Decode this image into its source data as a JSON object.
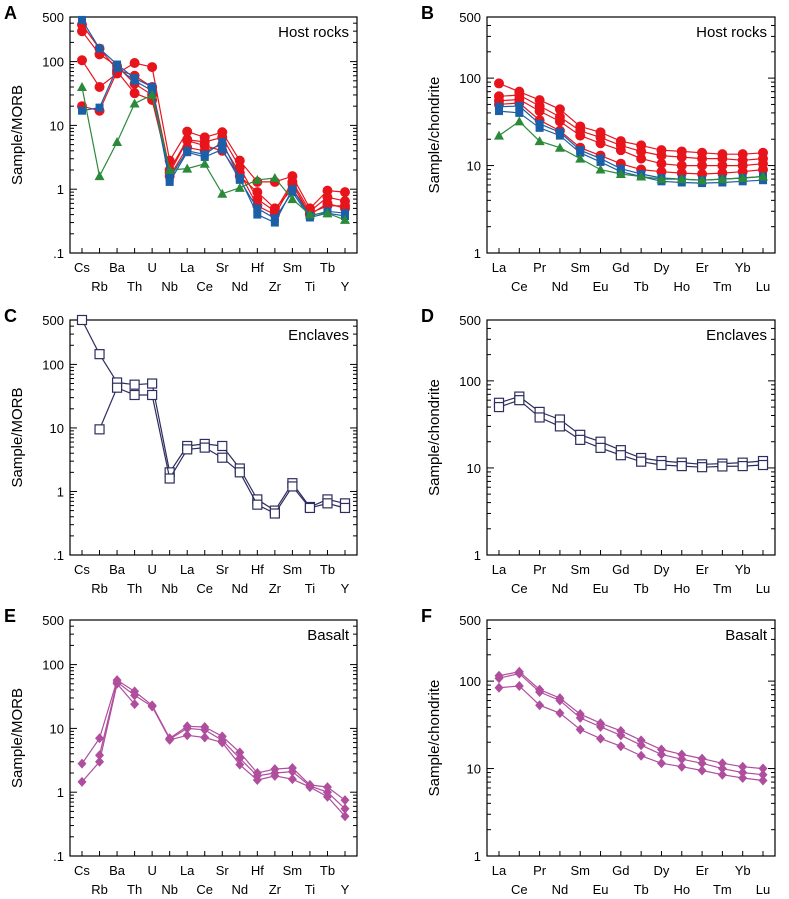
{
  "colors": {
    "red": "#e8141c",
    "blue": "#1b5fa8",
    "green": "#2a8a3a",
    "navy": "#2e2e5e",
    "purple": "#b04e9e"
  },
  "chart_data": [
    {
      "id": "A",
      "panel_label": "A",
      "type": "line",
      "title": "Host rocks",
      "ylabel": "Sample/MORB",
      "yscale": "log",
      "ylim": [
        0.1,
        500
      ],
      "yticks": [
        ".1",
        "1",
        "10",
        "100",
        "500"
      ],
      "categories": [
        "Cs",
        "Rb",
        "Ba",
        "Th",
        "U",
        "Nb",
        "La",
        "Ce",
        "Sr",
        "Nd",
        "Hf",
        "Zr",
        "Sm",
        "Ti",
        "Tb",
        "Y"
      ],
      "series": [
        {
          "name": "host-red-1",
          "color": "red",
          "marker": "circle",
          "values": [
            380,
            160,
            75,
            60,
            40,
            2.0,
            6.0,
            5.5,
            6.5,
            2.2,
            0.7,
            0.45,
            1.3,
            0.45,
            0.75,
            0.65
          ]
        },
        {
          "name": "host-red-2",
          "color": "red",
          "marker": "circle",
          "values": [
            300,
            130,
            85,
            45,
            30,
            1.6,
            4.5,
            4.0,
            5.0,
            1.8,
            0.55,
            0.4,
            1.2,
            0.4,
            0.6,
            0.5
          ]
        },
        {
          "name": "host-red-3",
          "color": "red",
          "marker": "circle",
          "values": [
            105,
            40,
            65,
            95,
            82,
            2.8,
            8.0,
            6.5,
            7.8,
            2.8,
            1.3,
            1.3,
            1.6,
            0.5,
            0.95,
            0.9
          ]
        },
        {
          "name": "host-red-4",
          "color": "red",
          "marker": "circle",
          "values": [
            20,
            17,
            70,
            32,
            25,
            1.8,
            5.8,
            4.8,
            4.0,
            1.6,
            0.9,
            0.5,
            1.0,
            0.42,
            0.55,
            0.55
          ]
        },
        {
          "name": "host-blue-1",
          "color": "blue",
          "marker": "square",
          "values": [
            450,
            160,
            90,
            55,
            40,
            1.5,
            4.0,
            3.5,
            5.5,
            1.5,
            0.4,
            0.3,
            1.0,
            0.38,
            0.45,
            0.42
          ]
        },
        {
          "name": "host-blue-2",
          "color": "blue",
          "marker": "square",
          "values": [
            17,
            19,
            80,
            50,
            35,
            1.3,
            3.8,
            3.2,
            4.2,
            1.4,
            0.5,
            0.35,
            0.9,
            0.36,
            0.42,
            0.38
          ]
        },
        {
          "name": "host-green",
          "color": "green",
          "marker": "triangle",
          "values": [
            40,
            1.6,
            5.5,
            22,
            30,
            2.0,
            2.1,
            2.5,
            0.85,
            1.05,
            1.4,
            1.5,
            0.7,
            0.4,
            0.42,
            0.33
          ]
        }
      ]
    },
    {
      "id": "B",
      "panel_label": "B",
      "type": "line",
      "title": "Host rocks",
      "ylabel": "Sample/chondrite",
      "yscale": "log",
      "ylim": [
        1,
        500
      ],
      "yticks": [
        "1",
        "10",
        "100",
        "500"
      ],
      "categories": [
        "La",
        "Ce",
        "Pr",
        "Nd",
        "Sm",
        "Eu",
        "Gd",
        "Tb",
        "Dy",
        "Ho",
        "Er",
        "Tm",
        "Yb",
        "Lu"
      ],
      "series": [
        {
          "name": "host-red-1",
          "color": "red",
          "marker": "circle",
          "values": [
            87,
            70,
            56,
            44,
            28,
            24,
            19,
            17,
            15,
            14.5,
            14,
            13.5,
            13.5,
            14
          ]
        },
        {
          "name": "host-red-2",
          "color": "red",
          "marker": "circle",
          "values": [
            62,
            64,
            48,
            36,
            25,
            21,
            17,
            14.5,
            13,
            12.5,
            12,
            12,
            11.5,
            12
          ]
        },
        {
          "name": "host-red-3",
          "color": "red",
          "marker": "circle",
          "values": [
            55,
            57,
            42,
            32,
            22,
            18,
            15,
            12,
            10.5,
            10,
            10,
            10,
            10,
            10.5
          ]
        },
        {
          "name": "host-red-4",
          "color": "red",
          "marker": "circle",
          "values": [
            50,
            52,
            33,
            25,
            16,
            13,
            10.5,
            9,
            8.5,
            8.2,
            8,
            8.2,
            8.5,
            9
          ]
        },
        {
          "name": "host-blue-1",
          "color": "blue",
          "marker": "square",
          "values": [
            47,
            48,
            30,
            24,
            15,
            12,
            9.2,
            8.0,
            7.2,
            7.0,
            6.8,
            7.0,
            7.2,
            7.5
          ]
        },
        {
          "name": "host-blue-2",
          "color": "blue",
          "marker": "square",
          "values": [
            42,
            40,
            27,
            22,
            14,
            11,
            8.5,
            7.5,
            6.6,
            6.4,
            6.3,
            6.4,
            6.6,
            6.8
          ]
        },
        {
          "name": "host-green",
          "color": "green",
          "marker": "triangle",
          "values": [
            22,
            32,
            19,
            16,
            12,
            9,
            8,
            7.5,
            7,
            7,
            6.8,
            7,
            7.2,
            7.5
          ]
        }
      ]
    },
    {
      "id": "C",
      "panel_label": "C",
      "type": "line",
      "title": "Enclaves",
      "ylabel": "Sample/MORB",
      "yscale": "log",
      "ylim": [
        0.1,
        500
      ],
      "yticks": [
        ".1",
        "1",
        "10",
        "100",
        "500"
      ],
      "categories": [
        "Cs",
        "Rb",
        "Ba",
        "Th",
        "U",
        "Nb",
        "La",
        "Ce",
        "Sr",
        "Nd",
        "Hf",
        "Zr",
        "Sm",
        "Ti",
        "Tb",
        "Y"
      ],
      "series": [
        {
          "name": "enclave-1",
          "color": "navy",
          "marker": "open-square",
          "values": [
            500,
            145,
            52,
            48,
            50,
            2.0,
            5.2,
            5.6,
            5.2,
            2.3,
            0.75,
            0.5,
            1.35,
            0.57,
            0.75,
            0.65
          ]
        },
        {
          "name": "enclave-2",
          "color": "navy",
          "marker": "open-square",
          "values": [
            null,
            9.5,
            43,
            33,
            33,
            1.6,
            4.6,
            4.9,
            3.4,
            2.0,
            0.62,
            0.45,
            1.2,
            0.55,
            0.65,
            0.55
          ]
        }
      ]
    },
    {
      "id": "D",
      "panel_label": "D",
      "type": "line",
      "title": "Enclaves",
      "ylabel": "Sample/chondrite",
      "yscale": "log",
      "ylim": [
        1,
        500
      ],
      "yticks": [
        "1",
        "10",
        "100",
        "500"
      ],
      "categories": [
        "La",
        "Ce",
        "Pr",
        "Nd",
        "Sm",
        "Eu",
        "Gd",
        "Tb",
        "Dy",
        "Ho",
        "Er",
        "Tm",
        "Yb",
        "Lu"
      ],
      "series": [
        {
          "name": "enclave-1",
          "color": "navy",
          "marker": "open-square",
          "values": [
            56,
            66,
            44,
            36,
            24,
            20,
            16,
            13,
            12,
            11.5,
            11,
            11.2,
            11.5,
            12
          ]
        },
        {
          "name": "enclave-2",
          "color": "navy",
          "marker": "open-square",
          "values": [
            50,
            60,
            38,
            30,
            21,
            17,
            14,
            11.8,
            10.8,
            10.5,
            10.2,
            10.4,
            10.5,
            10.8
          ]
        }
      ]
    },
    {
      "id": "E",
      "panel_label": "E",
      "type": "line",
      "title": "Basalt",
      "ylabel": "Sample/MORB",
      "yscale": "log",
      "ylim": [
        0.1,
        500
      ],
      "yticks": [
        ".1",
        "1",
        "10",
        "100",
        "500"
      ],
      "categories": [
        "Cs",
        "Rb",
        "Ba",
        "Th",
        "U",
        "Nb",
        "La",
        "Ce",
        "Sr",
        "Nd",
        "Hf",
        "Zr",
        "Sm",
        "Ti",
        "Tb",
        "Y"
      ],
      "series": [
        {
          "name": "basalt-1",
          "color": "purple",
          "marker": "diamond",
          "values": [
            2.8,
            7.0,
            57,
            38,
            23,
            7.0,
            10.8,
            10.5,
            7.5,
            4.2,
            2.0,
            2.3,
            2.4,
            1.3,
            1.2,
            0.75
          ]
        },
        {
          "name": "basalt-2",
          "color": "purple",
          "marker": "diamond",
          "values": [
            null,
            3.8,
            53,
            33,
            22,
            6.8,
            10.0,
            9.5,
            6.5,
            3.4,
            1.8,
            2.0,
            2.1,
            1.25,
            1.0,
            0.55
          ]
        },
        {
          "name": "basalt-3",
          "color": "purple",
          "marker": "diamond",
          "values": [
            1.45,
            3.0,
            50,
            24,
            null,
            6.6,
            7.8,
            7.2,
            6.0,
            2.7,
            1.55,
            1.8,
            1.6,
            1.2,
            0.85,
            0.42
          ]
        }
      ]
    },
    {
      "id": "F",
      "panel_label": "F",
      "type": "line",
      "title": "Basalt",
      "ylabel": "Sample/chondrite",
      "yscale": "log",
      "ylim": [
        1,
        500
      ],
      "yticks": [
        "1",
        "10",
        "100",
        "500"
      ],
      "categories": [
        "La",
        "Ce",
        "Pr",
        "Nd",
        "Sm",
        "Eu",
        "Gd",
        "Tb",
        "Dy",
        "Ho",
        "Er",
        "Tm",
        "Yb",
        "Lu"
      ],
      "series": [
        {
          "name": "basalt-1",
          "color": "purple",
          "marker": "diamond",
          "values": [
            115,
            128,
            80,
            64,
            42,
            33,
            27,
            21,
            16.5,
            14.5,
            13,
            11.5,
            10.5,
            10
          ]
        },
        {
          "name": "basalt-2",
          "color": "purple",
          "marker": "diamond",
          "values": [
            108,
            122,
            75,
            60,
            38,
            30,
            24,
            18.5,
            14.5,
            12.8,
            11.5,
            10,
            9,
            8.5
          ]
        },
        {
          "name": "basalt-3",
          "color": "purple",
          "marker": "diamond",
          "values": [
            84,
            88,
            53,
            43,
            28,
            22,
            18,
            14,
            11.5,
            10.5,
            9.5,
            8.5,
            7.8,
            7.3
          ]
        }
      ]
    }
  ]
}
